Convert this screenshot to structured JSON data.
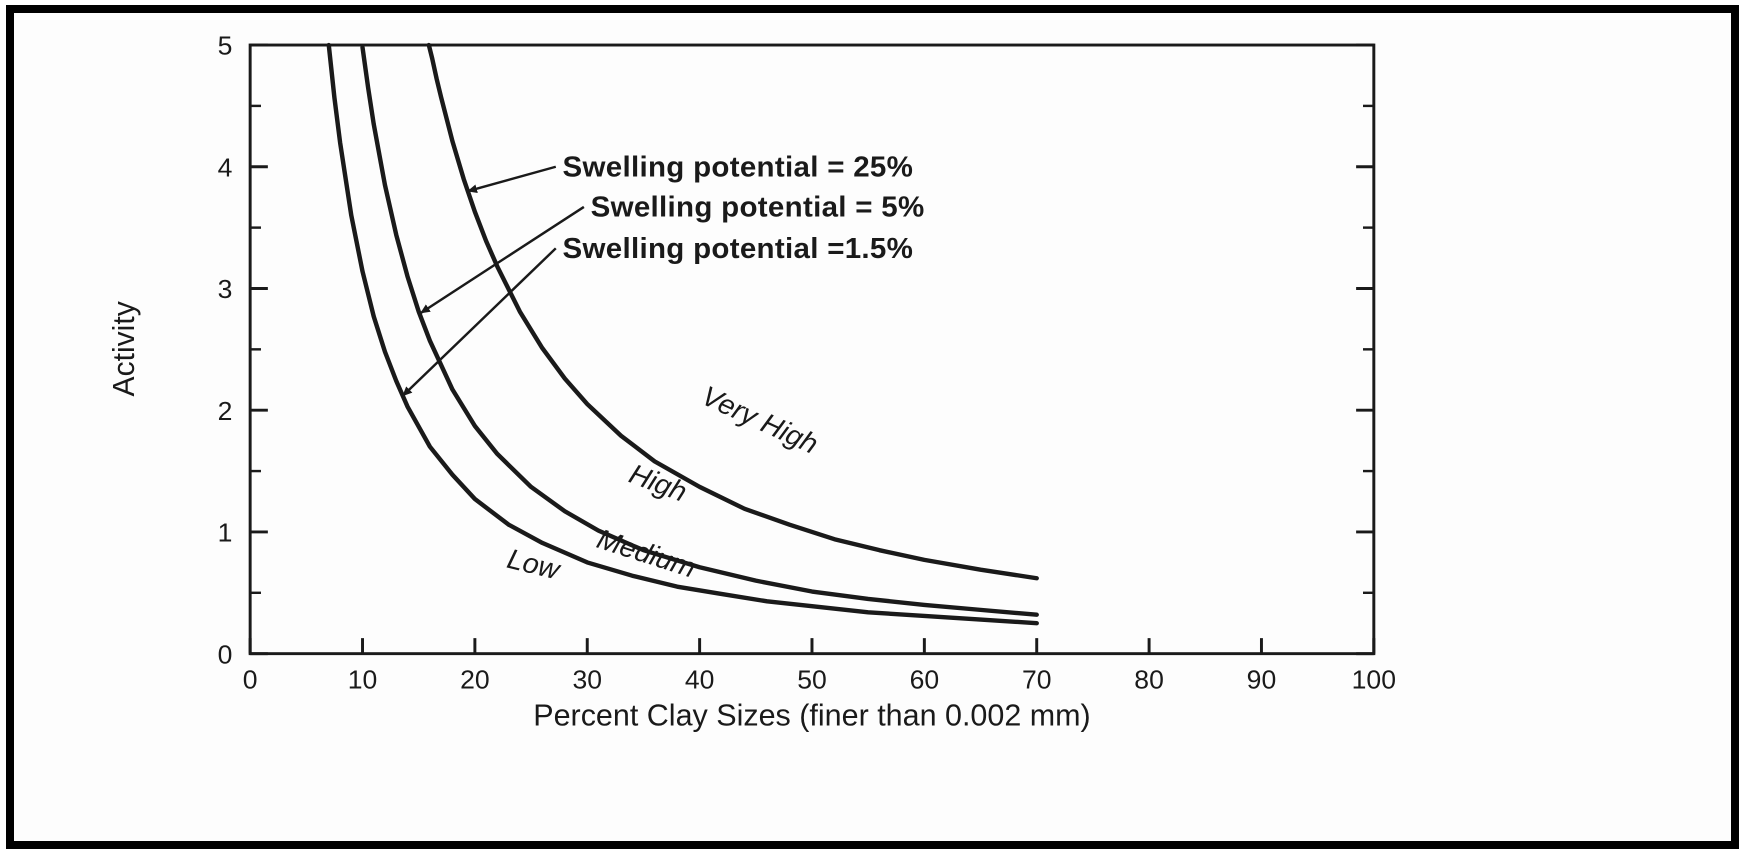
{
  "figure": {
    "background": "#fdfdfd",
    "frame_color": "#000000"
  },
  "chart_data": {
    "type": "line",
    "title": "",
    "xlabel": "Percent Clay Sizes  (finer than 0.002 mm)",
    "ylabel": "Activity",
    "xlim": [
      0,
      100
    ],
    "ylim": [
      0,
      5
    ],
    "x_ticks": [
      0,
      10,
      20,
      30,
      40,
      50,
      60,
      70,
      80,
      90,
      100
    ],
    "y_ticks": [
      0,
      1,
      2,
      3,
      4,
      5
    ],
    "y_minor_step": 0.5,
    "grid": false,
    "legend_position": "inside-top",
    "style": {
      "ink": "#1a1a1a",
      "curve_width": 4.5
    },
    "series": [
      {
        "name": "swelling-25",
        "label": "Swelling potential = 25%",
        "points": [
          [
            15.9,
            5.0
          ],
          [
            16.2,
            4.89
          ],
          [
            16.6,
            4.72
          ],
          [
            17,
            4.57
          ],
          [
            18,
            4.21
          ],
          [
            19,
            3.9
          ],
          [
            20,
            3.63
          ],
          [
            21,
            3.39
          ],
          [
            22,
            3.18
          ],
          [
            24,
            2.81
          ],
          [
            26,
            2.51
          ],
          [
            28,
            2.26
          ],
          [
            30,
            2.05
          ],
          [
            33,
            1.79
          ],
          [
            36,
            1.58
          ],
          [
            40,
            1.37
          ],
          [
            44,
            1.19
          ],
          [
            48,
            1.06
          ],
          [
            52,
            0.94
          ],
          [
            56,
            0.85
          ],
          [
            60,
            0.77
          ],
          [
            65,
            0.69
          ],
          [
            70,
            0.62
          ]
        ]
      },
      {
        "name": "swelling-5",
        "label": "Swelling potential = 5%",
        "points": [
          [
            10,
            4.98
          ],
          [
            10.5,
            4.65
          ],
          [
            11,
            4.35
          ],
          [
            12,
            3.85
          ],
          [
            13,
            3.44
          ],
          [
            14,
            3.1
          ],
          [
            15,
            2.81
          ],
          [
            16,
            2.57
          ],
          [
            18,
            2.17
          ],
          [
            20,
            1.87
          ],
          [
            22,
            1.64
          ],
          [
            25,
            1.37
          ],
          [
            28,
            1.17
          ],
          [
            31,
            1.01
          ],
          [
            35,
            0.85
          ],
          [
            40,
            0.71
          ],
          [
            45,
            0.6
          ],
          [
            50,
            0.51
          ],
          [
            55,
            0.45
          ],
          [
            60,
            0.4
          ],
          [
            65,
            0.36
          ],
          [
            70,
            0.32
          ]
        ]
      },
      {
        "name": "swelling-1-5",
        "label": "Swelling potential =1.5%",
        "points": [
          [
            7,
            5.0
          ],
          [
            7.5,
            4.57
          ],
          [
            8,
            4.2
          ],
          [
            9,
            3.6
          ],
          [
            10,
            3.14
          ],
          [
            11,
            2.77
          ],
          [
            12,
            2.48
          ],
          [
            13,
            2.24
          ],
          [
            14,
            2.03
          ],
          [
            16,
            1.7
          ],
          [
            18,
            1.47
          ],
          [
            20,
            1.27
          ],
          [
            23,
            1.06
          ],
          [
            26,
            0.91
          ],
          [
            30,
            0.75
          ],
          [
            34,
            0.64
          ],
          [
            38,
            0.55
          ],
          [
            42,
            0.49
          ],
          [
            46,
            0.43
          ],
          [
            50,
            0.39
          ],
          [
            55,
            0.34
          ],
          [
            60,
            0.31
          ],
          [
            65,
            0.28
          ],
          [
            70,
            0.25
          ]
        ]
      }
    ],
    "zone_labels": [
      {
        "text": "Very High",
        "x": 45,
        "y": 1.85,
        "angle": 25
      },
      {
        "text": "High",
        "x": 36,
        "y": 1.33,
        "angle": 21
      },
      {
        "text": "Medium",
        "x": 35,
        "y": 0.75,
        "angle": 18
      },
      {
        "text": "Low",
        "x": 25,
        "y": 0.66,
        "angle": 14
      }
    ],
    "annotations": [
      {
        "text": "Swelling potential = 25%",
        "x": 27.8,
        "y": 4.0,
        "arrow": {
          "x1": 27.2,
          "y1": 4.0,
          "x2": 19.4,
          "y2": 3.8
        }
      },
      {
        "text": "Swelling potential = 5%",
        "x": 30.3,
        "y": 3.67,
        "arrow": {
          "x1": 29.7,
          "y1": 3.67,
          "x2": 15.2,
          "y2": 2.8
        }
      },
      {
        "text": "Swelling potential =1.5%",
        "x": 27.8,
        "y": 3.33,
        "arrow": {
          "x1": 27.2,
          "y1": 3.33,
          "x2": 13.6,
          "y2": 2.12
        }
      }
    ]
  }
}
